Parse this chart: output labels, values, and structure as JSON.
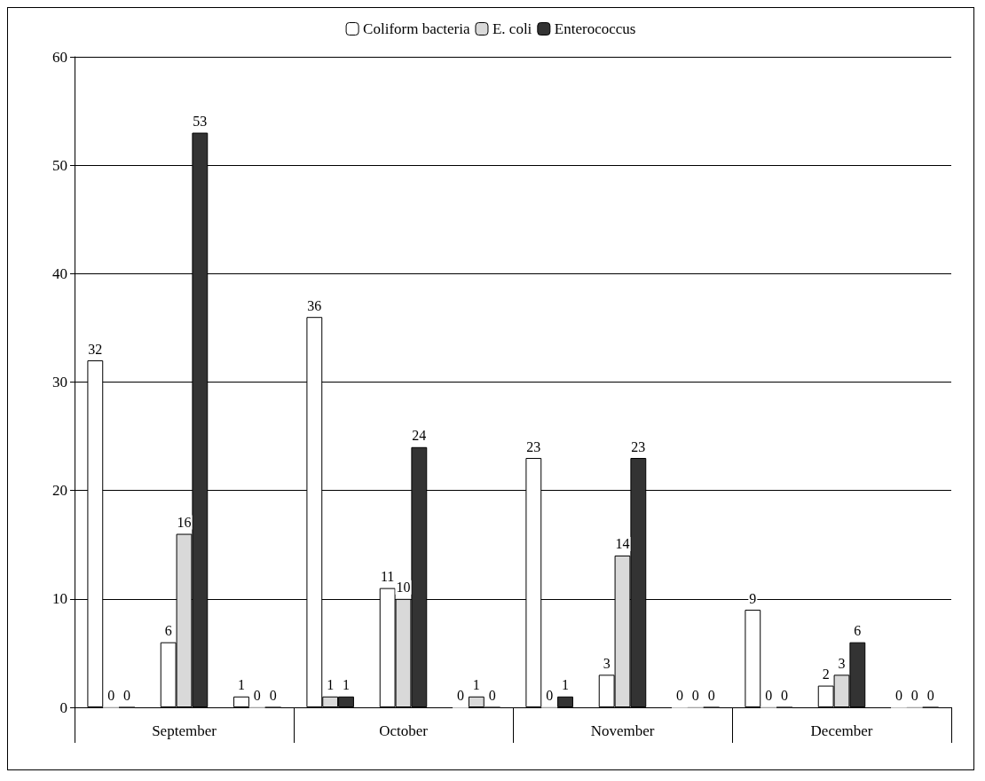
{
  "chart_data": {
    "type": "bar",
    "categories": [
      null,
      "September",
      null,
      null,
      "October",
      null,
      null,
      "November",
      null,
      null,
      "December",
      null
    ],
    "series": [
      {
        "name": "Coliform bacteria",
        "color": "#ffffff",
        "values": [
          32,
          6,
          1,
          36,
          11,
          0,
          23,
          3,
          0,
          9,
          2,
          0
        ]
      },
      {
        "name": "E. coli",
        "color": "#d9d9d9",
        "values": [
          0,
          16,
          0,
          1,
          10,
          1,
          0,
          14,
          0,
          0,
          3,
          0
        ]
      },
      {
        "name": "Enterococcus",
        "color": "#333333",
        "values": [
          0,
          53,
          0,
          1,
          24,
          0,
          1,
          23,
          0,
          0,
          6,
          0
        ]
      }
    ],
    "ylim": [
      0,
      60
    ],
    "yticks": [
      0,
      10,
      20,
      30,
      40,
      50,
      60
    ],
    "grid": "y",
    "legend": "top",
    "data_labels": true
  }
}
